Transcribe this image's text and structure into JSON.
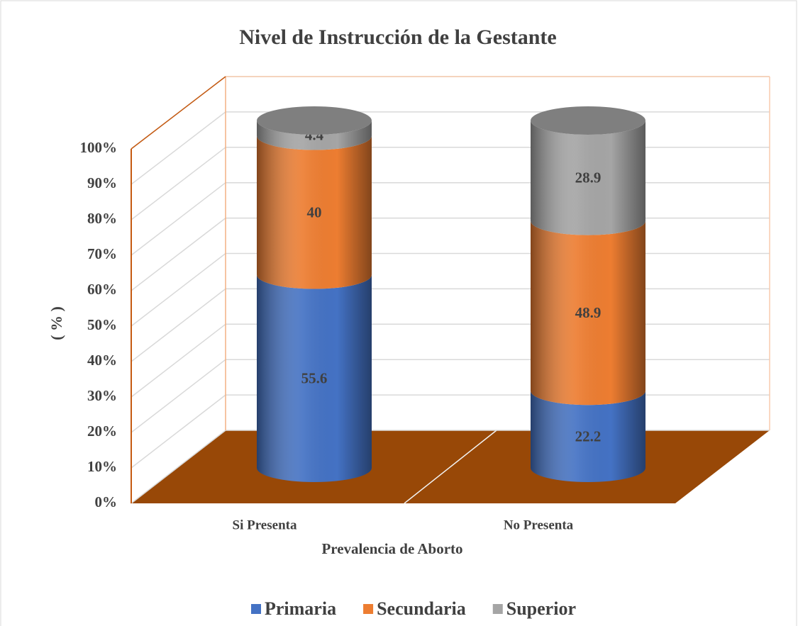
{
  "chart_data": {
    "type": "bar3d_stacked_cylinder",
    "title": "Nivel de Instrucción de la Gestante",
    "x_label": "Prevalencia de Aborto",
    "y_label": "( % )",
    "categories": [
      "Si Presenta",
      "No Presenta"
    ],
    "series": [
      {
        "name": "Primaria",
        "color": "#4472c4",
        "values": [
          55.6,
          22.2
        ]
      },
      {
        "name": "Secundaria",
        "color": "#ed7d31",
        "values": [
          40,
          48.9
        ]
      },
      {
        "name": "Superior",
        "color": "#a5a5a5",
        "values": [
          4.4,
          28.9
        ]
      }
    ],
    "ylim": [
      0,
      100
    ],
    "yticks": [
      {
        "value": 0,
        "label": "0%"
      },
      {
        "value": 10,
        "label": "10%"
      },
      {
        "value": 20,
        "label": "20%"
      },
      {
        "value": 30,
        "label": "30%"
      },
      {
        "value": 40,
        "label": "40%"
      },
      {
        "value": 50,
        "label": "50%"
      },
      {
        "value": 60,
        "label": "60%"
      },
      {
        "value": 70,
        "label": "70%"
      },
      {
        "value": 80,
        "label": "80%"
      },
      {
        "value": 90,
        "label": "90%"
      },
      {
        "value": 100,
        "label": "100%"
      }
    ],
    "grid": true,
    "legend": "bottom"
  }
}
